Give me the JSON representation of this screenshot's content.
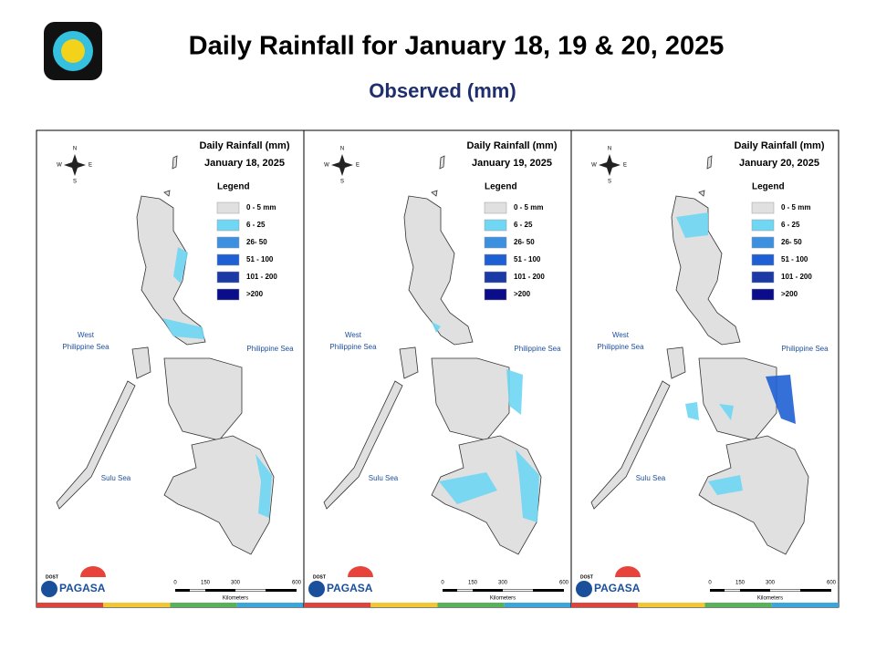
{
  "header": {
    "title": "Daily Rainfall for January 18, 19 & 20, 2025",
    "subtitle": "Observed (mm)"
  },
  "legend": {
    "title": "Legend",
    "items": [
      {
        "label": "0 - 5 mm",
        "color": "#e0e0e0"
      },
      {
        "label": "6 - 25",
        "color": "#6fd6f4"
      },
      {
        "label": "26- 50",
        "color": "#3d90e0"
      },
      {
        "label": "51 - 100",
        "color": "#1f5fd4"
      },
      {
        "label": "101 - 200",
        "color": "#1b3aa6"
      },
      {
        "label": ">200",
        "color": "#0b0c8a"
      }
    ]
  },
  "map_labels": {
    "west": "West",
    "west_sea": "Philippine Sea",
    "east_sea": "Philippine Sea",
    "sulu": "Sulu Sea"
  },
  "compass": {
    "n": "N",
    "w": "W",
    "e": "E",
    "s": "S"
  },
  "scale": {
    "ticks": [
      "0",
      "150",
      "300",
      "600"
    ],
    "unit": "Kilometers"
  },
  "logo": {
    "agency": "PAGASA",
    "dost": "DOST"
  },
  "panels": [
    {
      "heading": "Daily Rainfall (mm)",
      "date": "January 18, 2025"
    },
    {
      "heading": "Daily Rainfall (mm)",
      "date": "January 19, 2025"
    },
    {
      "heading": "Daily Rainfall (mm)",
      "date": "January 20, 2025"
    }
  ]
}
